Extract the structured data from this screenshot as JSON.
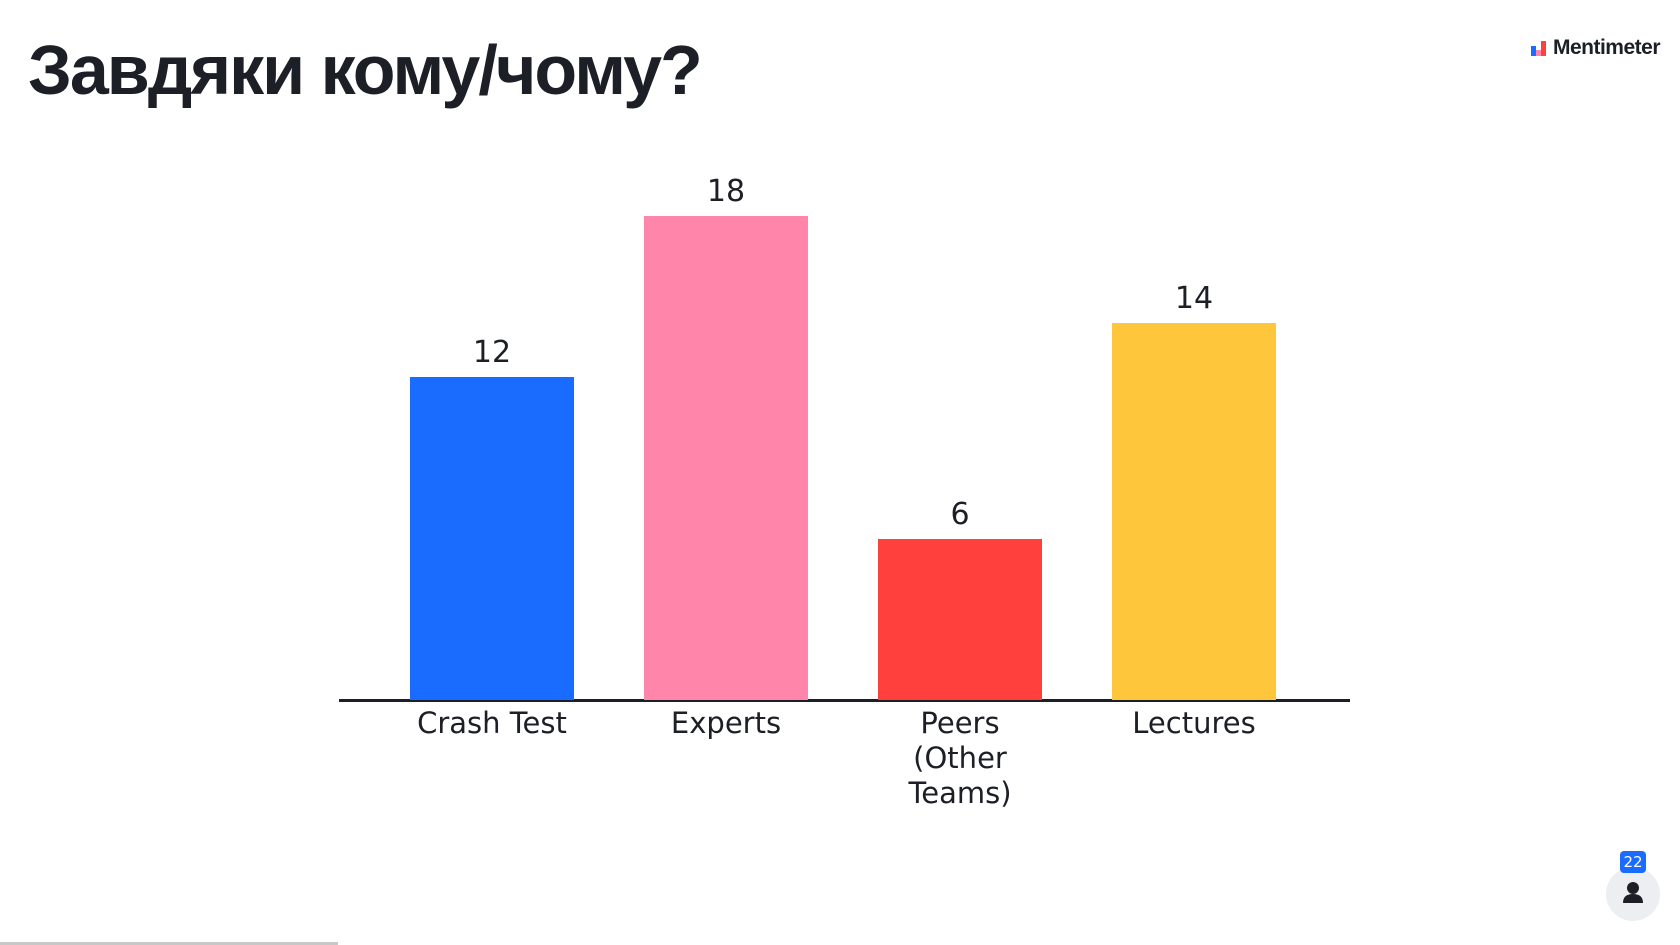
{
  "brand": "Mentimeter",
  "participants": 22,
  "chart_data": {
    "type": "bar",
    "title": "Завдяки кому/чому?",
    "categories": [
      "Crash Test",
      "Experts",
      "Peers (Other Teams)",
      "Lectures"
    ],
    "values": [
      12,
      18,
      6,
      14
    ],
    "colors": [
      "#1a6bff",
      "#ff85ab",
      "#ff403d",
      "#fec63a"
    ]
  }
}
